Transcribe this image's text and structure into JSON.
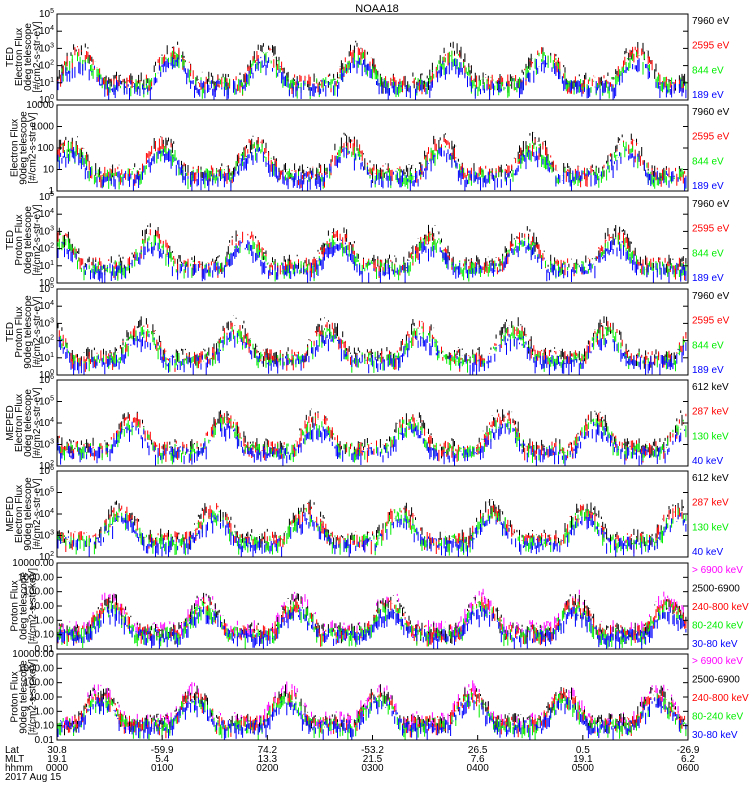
{
  "title": "NOAA18",
  "colors": {
    "blue": "#0000ff",
    "red": "#ff0000",
    "green": "#00ee00",
    "black": "#000000",
    "magenta": "#ff00ff"
  },
  "footer": {
    "row_labels": [
      "Lat",
      "MLT",
      "hhmm",
      "2017 Aug 15"
    ],
    "lat": [
      "30.8",
      "-59.9",
      "74.2",
      "-53.2",
      "26.5",
      "0.5",
      "-26.9"
    ],
    "mlt": [
      "19.1",
      "5.4",
      "13.3",
      "21.5",
      "7.6",
      "19.1",
      "6.2"
    ],
    "hhmm": [
      "0000",
      "0100",
      "0200",
      "0300",
      "0400",
      "0500",
      "0600"
    ]
  },
  "chart_data": [
    {
      "type": "scatter",
      "ylabel": [
        "TED",
        "Electron Flux",
        "0deg telescope",
        "[#/cm2-s-str-eV]"
      ],
      "yscale": "log",
      "ylim_exp": [
        0,
        5
      ],
      "tick_labels": [
        "10^0",
        "10^1",
        "10^2",
        "10^3",
        "10^4",
        "10^5"
      ],
      "channels": [
        {
          "name": "7960 eV",
          "color": "#000000"
        },
        {
          "name": "2595 eV",
          "color": "#ff0000"
        },
        {
          "name": "844 eV",
          "color": "#00ee00"
        },
        {
          "name": "189 eV",
          "color": "#0000ff"
        }
      ]
    },
    {
      "type": "scatter",
      "ylabel": [
        "Electron Flux",
        "90deg telescope",
        "[#/cm2-s-str-eV]"
      ],
      "yscale": "log",
      "ylim_exp": [
        0,
        4
      ],
      "tick_labels": [
        "1",
        "10",
        "100",
        "1000",
        "10000"
      ],
      "channels": [
        {
          "name": "7960 eV",
          "color": "#000000"
        },
        {
          "name": "2595 eV",
          "color": "#ff0000"
        },
        {
          "name": "844 eV",
          "color": "#00ee00"
        },
        {
          "name": "189 eV",
          "color": "#0000ff"
        }
      ]
    },
    {
      "type": "scatter",
      "ylabel": [
        "TED",
        "Proton Flux",
        "0deg telescope",
        "[#/cm2-s-str-eV]"
      ],
      "yscale": "log",
      "ylim_exp": [
        0,
        5
      ],
      "tick_labels": [
        "10^0",
        "10^1",
        "10^2",
        "10^3",
        "10^4",
        "10^5"
      ],
      "channels": [
        {
          "name": "7960 eV",
          "color": "#000000"
        },
        {
          "name": "2595 eV",
          "color": "#ff0000"
        },
        {
          "name": "844 eV",
          "color": "#00ee00"
        },
        {
          "name": "189 eV",
          "color": "#0000ff"
        }
      ]
    },
    {
      "type": "scatter",
      "ylabel": [
        "TED",
        "Proton Flux",
        "90deg telescope",
        "[#/cm2-s-str-eV]"
      ],
      "yscale": "log",
      "ylim_exp": [
        0,
        5
      ],
      "tick_labels": [
        "10^0",
        "10^1",
        "10^2",
        "10^3",
        "10^4",
        "10^5"
      ],
      "channels": [
        {
          "name": "7960 eV",
          "color": "#000000"
        },
        {
          "name": "2595 eV",
          "color": "#ff0000"
        },
        {
          "name": "844 eV",
          "color": "#00ee00"
        },
        {
          "name": "189 eV",
          "color": "#0000ff"
        }
      ]
    },
    {
      "type": "scatter",
      "ylabel": [
        "MEPED",
        "Electron Flux",
        "0deg telescope",
        "[#/cm2-s-str-eV]"
      ],
      "yscale": "log",
      "ylim_exp": [
        2,
        6
      ],
      "tick_labels": [
        "10^2",
        "10^3",
        "10^4",
        "10^5",
        "10^6"
      ],
      "channels": [
        {
          "name": "612 keV",
          "color": "#000000"
        },
        {
          "name": "287 keV",
          "color": "#ff0000"
        },
        {
          "name": "130 keV",
          "color": "#00ee00"
        },
        {
          "name": "40 keV",
          "color": "#0000ff"
        }
      ]
    },
    {
      "type": "scatter",
      "ylabel": [
        "MEPED",
        "Electron Flux",
        "90deg telescope",
        "[#/cm2-s-str-eV]"
      ],
      "yscale": "log",
      "ylim_exp": [
        2,
        6
      ],
      "tick_labels": [
        "10^2",
        "10^3",
        "10^4",
        "10^5",
        "10^6"
      ],
      "channels": [
        {
          "name": "612 keV",
          "color": "#000000"
        },
        {
          "name": "287 keV",
          "color": "#ff0000"
        },
        {
          "name": "130 keV",
          "color": "#00ee00"
        },
        {
          "name": "40 keV",
          "color": "#0000ff"
        }
      ]
    },
    {
      "type": "scatter",
      "ylabel": [
        "Proton Flux",
        "0deg telescope",
        "[#/cm2-s-str-keV]"
      ],
      "yscale": "log",
      "ylim_exp": [
        -2,
        4
      ],
      "tick_labels": [
        "0.01",
        "0.10",
        "1.00",
        "10.00",
        "100.00",
        "1000.00",
        "10000.00"
      ],
      "channels": [
        {
          "name": "> 6900 keV",
          "color": "#ff00ff"
        },
        {
          "name": "2500-6900",
          "color": "#000000"
        },
        {
          "name": "240-800 keV",
          "color": "#ff0000"
        },
        {
          "name": "80-240 keV",
          "color": "#00ee00"
        },
        {
          "name": "30-80 keV",
          "color": "#0000ff"
        }
      ]
    },
    {
      "type": "scatter",
      "ylabel": [
        "Proton Flux",
        "90deg telescope",
        "[#/cm2-s-str-keV]"
      ],
      "yscale": "log",
      "ylim_exp": [
        -2,
        4
      ],
      "tick_labels": [
        "0.01",
        "0.10",
        "1.00",
        "10.00",
        "100.00",
        "1000.00",
        "10000.00"
      ],
      "channels": [
        {
          "name": "> 6900 keV",
          "color": "#ff00ff"
        },
        {
          "name": "2500-6900",
          "color": "#000000"
        },
        {
          "name": "240-800 keV",
          "color": "#ff0000"
        },
        {
          "name": "80-240 keV",
          "color": "#00ee00"
        },
        {
          "name": "30-80 keV",
          "color": "#0000ff"
        }
      ]
    }
  ]
}
